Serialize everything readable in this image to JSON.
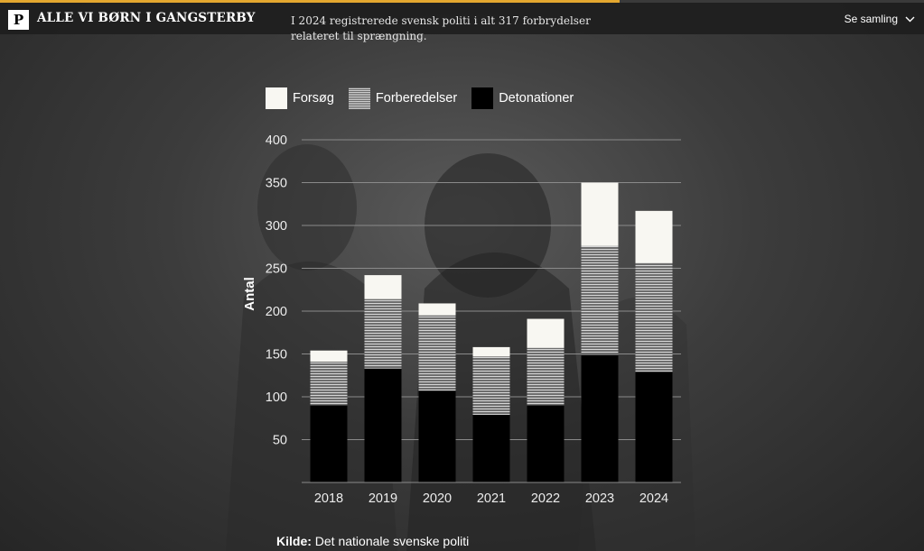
{
  "header": {
    "logo": "P",
    "brand": "ALLE VI BØRN I GANGSTERBY",
    "caption": "I 2024 registrerede svensk politi i alt 317 forbrydelser relateret til sprængning.",
    "collection_label": "Se samling",
    "accent_color": "#e3a72f"
  },
  "icons": {
    "collection": "chevron-down-icon"
  },
  "chart_data": {
    "type": "bar",
    "stacked": true,
    "categories": [
      "2018",
      "2019",
      "2020",
      "2021",
      "2022",
      "2023",
      "2024"
    ],
    "series": [
      {
        "name": "Detonationer",
        "values": [
          90,
          133,
          107,
          79,
          90,
          149,
          129
        ],
        "color": "#000000"
      },
      {
        "name": "Forberedelser",
        "values": [
          51,
          81,
          88,
          68,
          67,
          127,
          127
        ],
        "color": "hatched-gray"
      },
      {
        "name": "Forsøg",
        "values": [
          13,
          28,
          14,
          11,
          34,
          74,
          61
        ],
        "color": "#f8f7f2"
      }
    ],
    "legend_order": [
      "Forsøg",
      "Forberedelser",
      "Detonationer"
    ],
    "ylabel": "Antal",
    "xlabel": "",
    "yticks": [
      50,
      100,
      150,
      200,
      250,
      300,
      350,
      400
    ],
    "ylim": [
      0,
      400
    ],
    "grid": true,
    "legend_position": "top-left"
  },
  "source": {
    "label": "Kilde:",
    "text": "Det nationale svenske politi"
  }
}
